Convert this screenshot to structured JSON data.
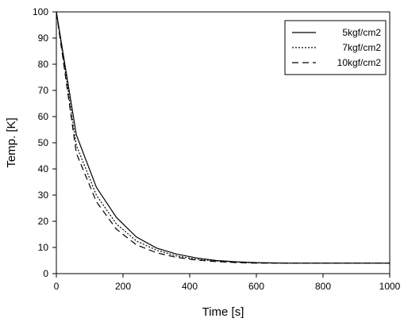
{
  "chart_data": {
    "type": "line",
    "xlabel": "Time [s]",
    "ylabel": "Temp. [K]",
    "xlim": [
      0,
      1000
    ],
    "ylim": [
      0,
      100
    ],
    "xticks": [
      0,
      200,
      400,
      600,
      800,
      1000
    ],
    "yticks": [
      0,
      10,
      20,
      30,
      40,
      50,
      60,
      70,
      80,
      90,
      100
    ],
    "x_tick_labels": [
      "0",
      "200",
      "400",
      "600",
      "800",
      "1000"
    ],
    "y_tick_labels": [
      "0",
      "10",
      "20",
      "30",
      "40",
      "50",
      "60",
      "70",
      "80",
      "90",
      "100"
    ],
    "grid": false,
    "legend_position": "top-right",
    "series": [
      {
        "name": "5kgf/cm2",
        "style": "solid",
        "x": [
          0,
          60,
          120,
          180,
          240,
          300,
          360,
          420,
          480,
          540,
          600,
          700,
          800,
          900,
          1000
        ],
        "y": [
          100,
          53,
          33,
          21.5,
          14,
          9.8,
          7.5,
          6,
          5,
          4.5,
          4.2,
          4,
          4,
          4,
          4
        ]
      },
      {
        "name": "7kgf/cm2",
        "style": "dotted",
        "x": [
          0,
          60,
          120,
          180,
          240,
          300,
          360,
          420,
          480,
          540,
          600,
          700,
          800,
          900,
          1000
        ],
        "y": [
          100,
          49,
          30,
          19,
          12.5,
          9,
          6.8,
          5.5,
          4.8,
          4.4,
          4.1,
          4,
          4,
          4,
          4
        ]
      },
      {
        "name": "10kgf/cm2",
        "style": "dashed",
        "x": [
          0,
          60,
          120,
          180,
          240,
          300,
          360,
          420,
          480,
          540,
          600,
          700,
          800,
          900,
          1000
        ],
        "y": [
          100,
          46,
          27.5,
          17,
          11,
          8,
          6.2,
          5.2,
          4.6,
          4.2,
          4.0,
          4,
          4,
          4,
          4
        ]
      }
    ]
  }
}
